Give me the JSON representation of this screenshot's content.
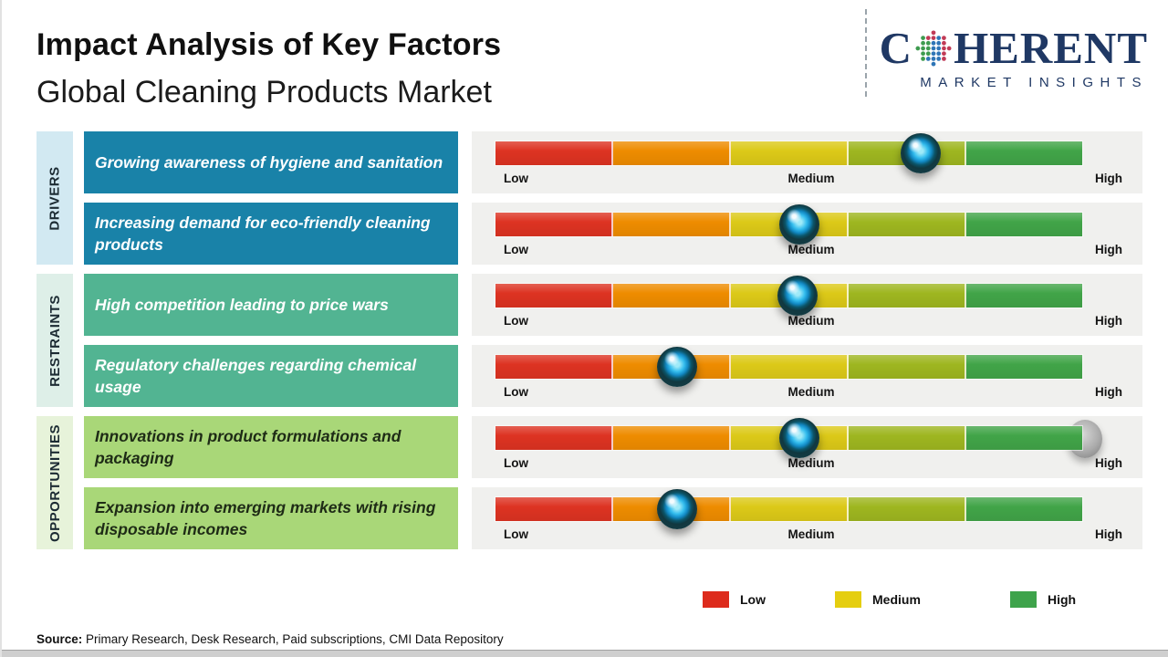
{
  "header": {
    "title": "Impact Analysis of Key Factors",
    "subtitle": "Global Cleaning Products Market"
  },
  "logo": {
    "brand_c": "C",
    "brand_rest": "HERENT",
    "tagline": "MARKET INSIGHTS",
    "color": "#1F3864"
  },
  "categories": [
    {
      "label": "DRIVERS",
      "rail_color": "#D2E9F2",
      "box_color": "#1982A8",
      "text_color": "#FFFFFF"
    },
    {
      "label": "RESTRAINTS",
      "rail_color": "#DEEFE8",
      "box_color": "#52B492",
      "text_color": "#FFFFFF"
    },
    {
      "label": "OPPORTUNITIES",
      "rail_color": "#E7F3DA",
      "box_color": "#A9D778",
      "text_color": "#1E2B16"
    }
  ],
  "scale": {
    "low": "Low",
    "medium": "Medium",
    "high": "High"
  },
  "rows": [
    {
      "category_index": 0,
      "factor": "Growing awareness of hygiene and sanitation",
      "impact_pct": 72.4
    },
    {
      "category_index": 0,
      "factor": "Increasing demand for eco-friendly cleaning products",
      "impact_pct": 51.8
    },
    {
      "category_index": 1,
      "factor": "High competition leading to price wars",
      "impact_pct": 51.5
    },
    {
      "category_index": 1,
      "factor": "Regulatory challenges regarding chemical usage",
      "impact_pct": 31.0
    },
    {
      "category_index": 2,
      "factor": "Innovations in product formulations and packaging",
      "impact_pct": 51.8,
      "end_shadow": true
    },
    {
      "category_index": 2,
      "factor": "Expansion into emerging markets with rising disposable incomes",
      "impact_pct": 31.0
    }
  ],
  "bar": {
    "segment_colors": [
      "#DD3322",
      "#EE8C00",
      "#DCC918",
      "#9EB620",
      "#41A448"
    ],
    "knob_colors": {
      "outer": "#143E47",
      "inner": "#2FB9EC"
    }
  },
  "legend": [
    {
      "label": "Low",
      "color": "#DD2B1C"
    },
    {
      "label": "Medium",
      "color": "#E5CE10"
    },
    {
      "label": "High",
      "color": "#3EA34B"
    }
  ],
  "source": {
    "prefix": "Source:",
    "text": " Primary Research, Desk Research, Paid subscriptions, CMI Data Repository"
  },
  "chart_data": {
    "type": "bar",
    "orientation": "horizontal",
    "marker": "slider-knob",
    "title": "Impact Analysis of Key Factors",
    "subtitle": "Global Cleaning Products Market",
    "categories": [
      "Growing awareness of hygiene and sanitation",
      "Increasing demand for eco-friendly cleaning products",
      "High competition leading to price wars",
      "Regulatory challenges regarding chemical usage",
      "Innovations in product formulations and packaging",
      "Expansion into emerging markets with rising disposable incomes"
    ],
    "groups": [
      "Drivers",
      "Drivers",
      "Restraints",
      "Restraints",
      "Opportunities",
      "Opportunities"
    ],
    "values": [
      72,
      52,
      52,
      31,
      52,
      31
    ],
    "value_scale": {
      "range": [
        0,
        100
      ],
      "tick_labels": [
        "Low",
        "Medium",
        "High"
      ],
      "tick_positions": [
        0,
        50,
        100
      ]
    },
    "segment_colors": [
      "#DD3322",
      "#EE8C00",
      "#DCC918",
      "#9EB620",
      "#41A448"
    ],
    "legend": [
      "Low",
      "Medium",
      "High"
    ],
    "legend_position": "bottom",
    "grid": false
  }
}
